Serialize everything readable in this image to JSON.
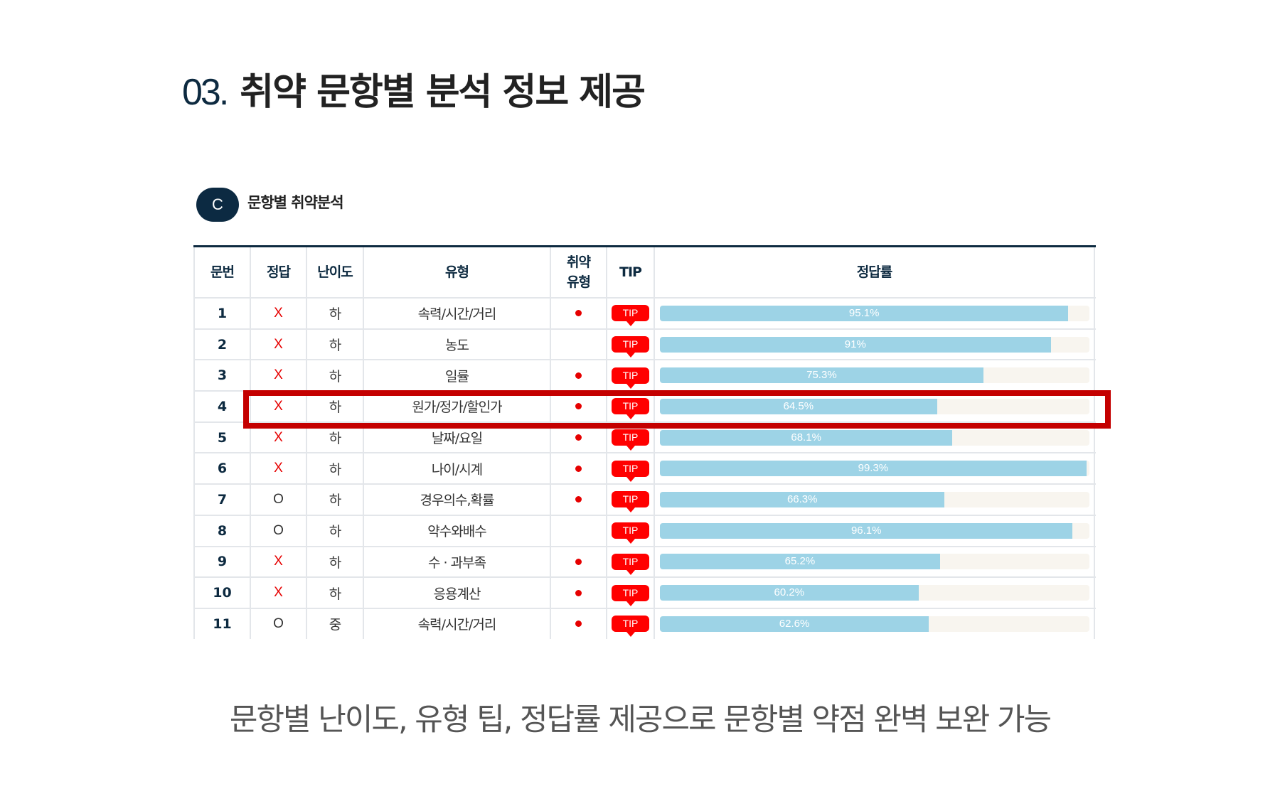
{
  "header": {
    "number": "03.",
    "title": "취약 문항별 분석 정보 제공"
  },
  "section": {
    "badge": "C",
    "label": "문항별 취약분석"
  },
  "table": {
    "columns": [
      "문번",
      "정답",
      "난이도",
      "유형",
      "취약\n유형",
      "TIP",
      "정답률"
    ],
    "tip_label": "TIP",
    "highlighted_row": 4,
    "rows": [
      {
        "no": "1",
        "answer": "X",
        "difficulty": "하",
        "type": "속력/시간/거리",
        "weak": true,
        "rate": 95.1,
        "rate_label": "95.1%"
      },
      {
        "no": "2",
        "answer": "X",
        "difficulty": "하",
        "type": "농도",
        "weak": false,
        "rate": 91,
        "rate_label": "91%"
      },
      {
        "no": "3",
        "answer": "X",
        "difficulty": "하",
        "type": "일률",
        "weak": true,
        "rate": 75.3,
        "rate_label": "75.3%"
      },
      {
        "no": "4",
        "answer": "X",
        "difficulty": "하",
        "type": "원가/정가/할인가",
        "weak": true,
        "rate": 64.5,
        "rate_label": "64.5%"
      },
      {
        "no": "5",
        "answer": "X",
        "difficulty": "하",
        "type": "날짜/요일",
        "weak": true,
        "rate": 68.1,
        "rate_label": "68.1%"
      },
      {
        "no": "6",
        "answer": "X",
        "difficulty": "하",
        "type": "나이/시계",
        "weak": true,
        "rate": 99.3,
        "rate_label": "99.3%"
      },
      {
        "no": "7",
        "answer": "O",
        "difficulty": "하",
        "type": "경우의수,확률",
        "weak": true,
        "rate": 66.3,
        "rate_label": "66.3%"
      },
      {
        "no": "8",
        "answer": "O",
        "difficulty": "하",
        "type": "약수와배수",
        "weak": false,
        "rate": 96.1,
        "rate_label": "96.1%"
      },
      {
        "no": "9",
        "answer": "X",
        "difficulty": "하",
        "type": "수 · 과부족",
        "weak": true,
        "rate": 65.2,
        "rate_label": "65.2%"
      },
      {
        "no": "10",
        "answer": "X",
        "difficulty": "하",
        "type": "응용계산",
        "weak": true,
        "rate": 60.2,
        "rate_label": "60.2%"
      },
      {
        "no": "11",
        "answer": "O",
        "difficulty": "중",
        "type": "속력/시간/거리",
        "weak": true,
        "rate": 62.6,
        "rate_label": "62.6%"
      }
    ]
  },
  "caption": "문항별 난이도, 유형 팁, 정답률 제공으로 문항별 약점 완벽 보완 가능",
  "colors": {
    "wrong": "#e60000",
    "tip": "#ff0000",
    "bar": "#9dd3e6",
    "track": "#f8f5ef",
    "highlight": "#c40000",
    "badge": "#0c2a42"
  }
}
